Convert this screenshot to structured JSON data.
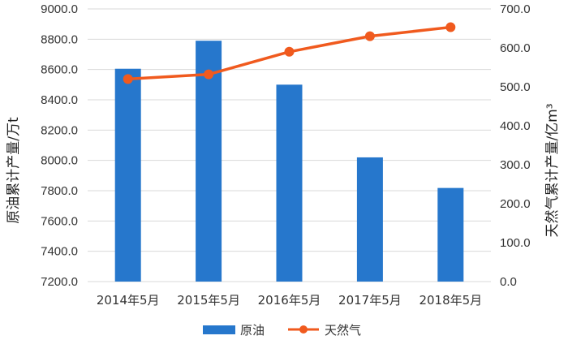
{
  "chart_data": {
    "type": "bar",
    "categories": [
      "2014年5月",
      "2015年5月",
      "2016年5月",
      "2017年5月",
      "2018年5月"
    ],
    "series": [
      {
        "name": "原油",
        "type": "bar",
        "axis": "left",
        "color": "#2677CC",
        "values": [
          8605,
          8790,
          8500,
          8020,
          7818
        ]
      },
      {
        "name": "天然气",
        "type": "line",
        "axis": "right",
        "color": "#F05A1E",
        "values": [
          520,
          532,
          590,
          630,
          653
        ]
      }
    ],
    "y_left": {
      "label": "原油累计产量/万t",
      "ylim": [
        7200,
        9000
      ],
      "ticks": [
        "7200.0",
        "7400.0",
        "7600.0",
        "7800.0",
        "8000.0",
        "8200.0",
        "8400.0",
        "8600.0",
        "8800.0",
        "9000.0"
      ]
    },
    "y_right": {
      "label": "天然气累计产量/亿m³",
      "ylim": [
        0,
        700
      ],
      "ticks": [
        "0.0",
        "100.0",
        "200.0",
        "300.0",
        "400.0",
        "500.0",
        "600.0",
        "700.0"
      ]
    },
    "grid": true,
    "legend": "bottom"
  }
}
